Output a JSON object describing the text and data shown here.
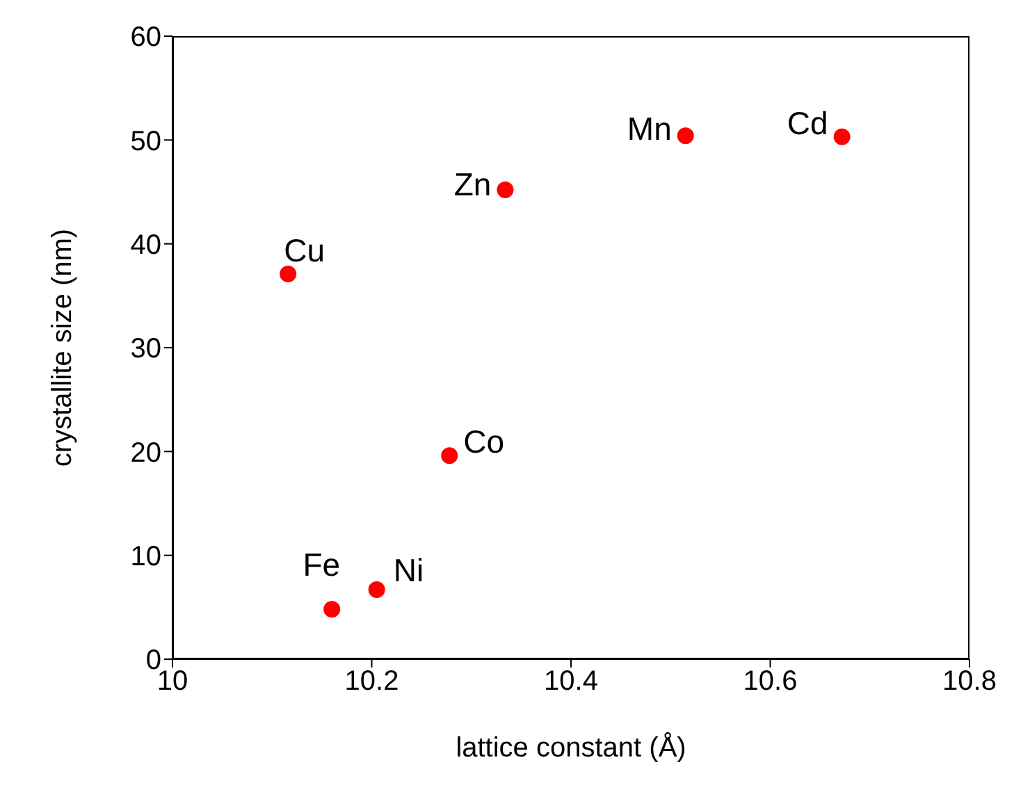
{
  "chart_data": {
    "type": "scatter",
    "xlabel": "lattice constant (Å)",
    "ylabel": "crystallite size (nm)",
    "x": [
      10.116,
      10.16,
      10.205,
      10.278,
      10.334,
      10.515,
      10.672
    ],
    "values": [
      37.1,
      4.8,
      6.7,
      19.6,
      45.2,
      50.4,
      50.3
    ],
    "color": "#ff0000",
    "marker": "circle",
    "xlim": [
      10,
      10.8
    ],
    "xticks": [
      10,
      10.2,
      10.4,
      10.6,
      10.8
    ],
    "ylim": [
      0,
      60
    ],
    "yticks": [
      0,
      10,
      20,
      30,
      40,
      50,
      60
    ],
    "annotations": [
      {
        "text": "Cu",
        "x": 10.116,
        "y": 37.1
      },
      {
        "text": "Fe",
        "x": 10.16,
        "y": 4.8
      },
      {
        "text": "Ni",
        "x": 10.205,
        "y": 6.7
      },
      {
        "text": "Co",
        "x": 10.278,
        "y": 19.6
      },
      {
        "text": "Zn",
        "x": 10.334,
        "y": 45.2
      },
      {
        "text": "Mn",
        "x": 10.515,
        "y": 50.4
      },
      {
        "text": "Cd",
        "x": 10.672,
        "y": 50.3
      }
    ]
  }
}
